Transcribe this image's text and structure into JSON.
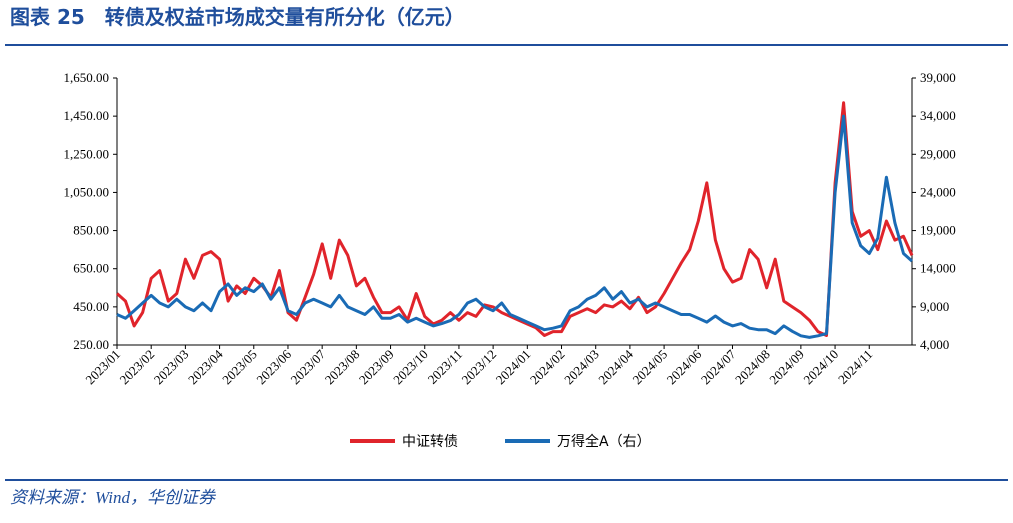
{
  "chart_data": {
    "type": "line",
    "title": "图表 25　转债及权益市场成交量有所分化（亿元）",
    "source": "资料来源：Wind，华创证券",
    "categories": [
      "2023/01",
      null,
      null,
      null,
      "2023/02",
      null,
      null,
      null,
      "2023/03",
      null,
      null,
      null,
      "2023/04",
      null,
      null,
      null,
      "2023/05",
      null,
      null,
      null,
      "2023/06",
      null,
      null,
      null,
      "2023/07",
      null,
      null,
      null,
      "2023/08",
      null,
      null,
      null,
      "2023/09",
      null,
      null,
      null,
      "2023/10",
      null,
      null,
      null,
      "2023/11",
      null,
      null,
      null,
      "2023/12",
      null,
      null,
      null,
      "2024/01",
      null,
      null,
      null,
      "2024/02",
      null,
      null,
      null,
      "2024/03",
      null,
      null,
      null,
      "2024/04",
      null,
      null,
      null,
      "2024/05",
      null,
      null,
      null,
      "2024/06",
      null,
      null,
      null,
      "2024/07",
      null,
      null,
      null,
      "2024/08",
      null,
      null,
      null,
      "2024/09",
      null,
      null,
      null,
      "2024/10",
      null,
      null,
      null,
      "2024/11",
      null,
      null,
      null,
      null,
      null
    ],
    "series": [
      {
        "name": "中证转债",
        "color": "#e0242b",
        "axis": "y",
        "values": [
          520,
          480,
          350,
          420,
          600,
          640,
          480,
          520,
          700,
          600,
          720,
          740,
          700,
          480,
          560,
          520,
          600,
          560,
          500,
          640,
          420,
          380,
          500,
          620,
          780,
          600,
          800,
          720,
          560,
          600,
          500,
          420,
          420,
          450,
          380,
          520,
          400,
          360,
          380,
          420,
          380,
          420,
          400,
          460,
          450,
          420,
          400,
          380,
          360,
          340,
          300,
          320,
          320,
          400,
          420,
          440,
          420,
          460,
          450,
          480,
          440,
          500,
          420,
          450,
          520,
          600,
          680,
          750,
          900,
          1100,
          800,
          650,
          580,
          600,
          750,
          700,
          550,
          700,
          480,
          450,
          420,
          380,
          320,
          300,
          1100,
          1520,
          950,
          820,
          850,
          750,
          900,
          800,
          820,
          720
        ]
      },
      {
        "name": "万得全A（右）",
        "color": "#1a6bb5",
        "axis": "y2",
        "values": [
          8000,
          7500,
          8500,
          9500,
          10500,
          9500,
          9000,
          10000,
          9000,
          8500,
          9500,
          8500,
          11000,
          12000,
          10500,
          11500,
          11000,
          12000,
          10000,
          11500,
          8500,
          8000,
          9500,
          10000,
          9500,
          9000,
          10500,
          9000,
          8500,
          8000,
          9000,
          7500,
          7500,
          8000,
          7000,
          7500,
          7000,
          6500,
          6800,
          7200,
          8000,
          9500,
          10000,
          9000,
          8500,
          9500,
          8000,
          7500,
          7000,
          6500,
          6000,
          6200,
          6500,
          8500,
          9000,
          10000,
          10500,
          11500,
          10000,
          11000,
          9500,
          10000,
          9000,
          9500,
          9000,
          8500,
          8000,
          8000,
          7500,
          7000,
          7800,
          7000,
          6500,
          6800,
          6200,
          6000,
          6000,
          5500,
          6500,
          5800,
          5200,
          5000,
          5200,
          5500,
          24000,
          34000,
          20000,
          17000,
          16000,
          18000,
          26000,
          20000,
          16000,
          15000
        ]
      }
    ],
    "ylim": [
      250,
      1650
    ],
    "yticks": [
      {
        "value": 250,
        "label": "250.00"
      },
      {
        "value": 450,
        "label": "450.00"
      },
      {
        "value": 650,
        "label": "650.00"
      },
      {
        "value": 850,
        "label": "850.00"
      },
      {
        "value": 1050,
        "label": "1,050.00"
      },
      {
        "value": 1250,
        "label": "1,250.00"
      },
      {
        "value": 1450,
        "label": "1,450.00"
      },
      {
        "value": 1650,
        "label": "1,650.00"
      }
    ],
    "y2lim": [
      4000,
      39000
    ],
    "y2ticks": [
      {
        "value": 4000,
        "label": "4,000"
      },
      {
        "value": 9000,
        "label": "9,000"
      },
      {
        "value": 14000,
        "label": "14,000"
      },
      {
        "value": 19000,
        "label": "19,000"
      },
      {
        "value": 24000,
        "label": "24,000"
      },
      {
        "value": 29000,
        "label": "29,000"
      },
      {
        "value": 34000,
        "label": "34,000"
      },
      {
        "value": 39000,
        "label": "39,000"
      }
    ],
    "legend": "bottom"
  }
}
